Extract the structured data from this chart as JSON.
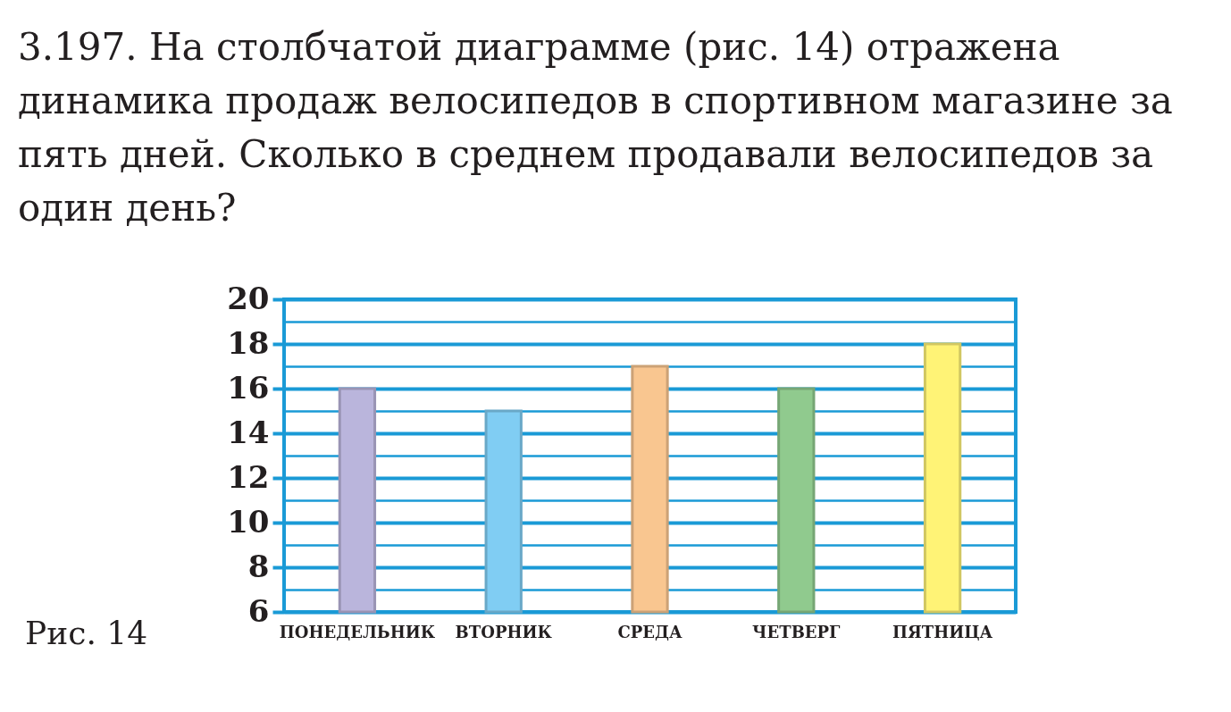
{
  "chart_data": {
    "type": "bar",
    "title": "3.197. На столбчатой диаграмме (рис. 14) отражена динамика продаж велосипедов в спортивном магазине за пять дней. Сколько в среднем продавали велосипедов за один день?",
    "categories": [
      "ПОНЕДЕЛЬНИК",
      "ВТОРНИК",
      "СРЕДА",
      "ЧЕТВЕРГ",
      "ПЯТНИЦА"
    ],
    "values": [
      16,
      15,
      17,
      16,
      18
    ],
    "colors": [
      "#bab5dc",
      "#80cdf3",
      "#f9c690",
      "#90ca8e",
      "#fff376"
    ],
    "ylim": [
      6,
      20
    ],
    "yticks": [
      6,
      {
        "value": 7,
        "label": null
      },
      8,
      {
        "value": 9,
        "label": null
      },
      10,
      {
        "value": 11,
        "label": null
      },
      12,
      {
        "value": 13,
        "label": null
      },
      14,
      {
        "value": 15,
        "label": null
      },
      16,
      {
        "value": 17,
        "label": null
      },
      18,
      {
        "value": 19,
        "label": null
      },
      20
    ],
    "grid": true,
    "annotations": [
      "Рис. 14"
    ]
  }
}
